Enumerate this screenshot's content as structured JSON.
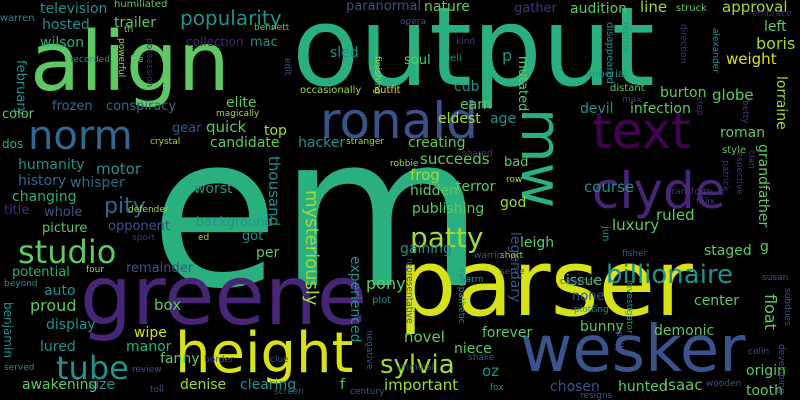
{
  "words": {
    "em": "em",
    "output": "output",
    "parser": "parser",
    "align": "align",
    "greene": "greene",
    "wesker": "wesker",
    "height": "height",
    "ronald": "ronald",
    "text": "text",
    "clyde": "clyde",
    "mw": "mw",
    "norm": "norm",
    "studio": "studio",
    "tube": "tube",
    "patty": "patty",
    "billionaire": "billionaire",
    "sylvia": "sylvia",
    "popularity": "popularity",
    "pity": "pity",
    "mysteriously": "mysteriously",
    "television": "television",
    "nature": "nature",
    "paranormal": "paranormal",
    "approval": "approval",
    "audition": "audition",
    "line": "line",
    "trailer": "trailer",
    "hosted": "hosted",
    "wilson": "wilson",
    "boris": "boris",
    "weight": "weight",
    "collection": "collection",
    "mac": "mac",
    "sled": "sled",
    "soul": "soul",
    "february": "february",
    "color": "color",
    "frozen": "frozen",
    "conspiracy": "conspiracy",
    "elite": "elite",
    "infection": "infection",
    "burton": "burton",
    "globe": "globe",
    "devil": "devil",
    "earn": "earn",
    "eldest": "eldest",
    "age": "age",
    "cub": "cub",
    "mutated": "mutated",
    "gear": "gear",
    "quick": "quick",
    "top": "top",
    "candidate": "candidate",
    "hacker": "hacker",
    "creating": "creating",
    "humanity": "humanity",
    "motor": "motor",
    "history": "history",
    "whisper": "whisper",
    "changing": "changing",
    "title": "title",
    "whole": "whole",
    "picture": "picture",
    "opponent": "opponent",
    "background": "background",
    "got": "got",
    "potential": "potential",
    "remainder": "remainder",
    "per": "per",
    "auto": "auto",
    "proud": "proud",
    "box": "box",
    "pony": "pony",
    "display": "display",
    "wipe": "wipe",
    "manor": "manor",
    "fanny": "fanny",
    "lured": "lured",
    "awakening": "awakening",
    "size": "size",
    "denise": "denise",
    "clearing": "clearing",
    "important": "important",
    "novel": "novel",
    "niece": "niece",
    "forever": "forever",
    "bunny": "bunny",
    "demonic": "demonic",
    "hunted": "hunted",
    "isaac": "isaac",
    "chosen": "chosen",
    "tooth": "tooth",
    "origin": "origin",
    "center": "center",
    "float": "float",
    "roman": "roman",
    "staged": "staged",
    "ruled": "ruled",
    "course": "course",
    "frog": "frog",
    "succeeds": "succeeds",
    "bad": "bad",
    "terror": "terror",
    "hidden": "hidden",
    "publishing": "publishing",
    "god": "god",
    "luxury": "luxury",
    "leigh": "leigh",
    "gaining": "gaining",
    "issue": "issue",
    "none": "none",
    "experienced": "experienced",
    "legendary": "legendary",
    "thousand": "thousand",
    "worst": "worst",
    "grandfather": "grandfather",
    "lorraine": "lorraine",
    "left": "left",
    "gather": "gather",
    "warren": "warren",
    "humiliated": "humiliated",
    "opera": "opera",
    "struck": "struck",
    "embrace": "embrace",
    "bennett": "bennett",
    "th": "th",
    "kind": "kind",
    "eli": "eli",
    "reprise": "reprise",
    "distant": "distant",
    "imperial": "imperial",
    "disappeared": "disappeared",
    "direction": "direction",
    "max": "max",
    "alexander": "alexander",
    "magically": "magically",
    "occasionally": "occasionally",
    "outfit": "outfit",
    "edit": "edit",
    "finishing": "finishing",
    "powerful": "powerful",
    "file": "file",
    "possession": "possession",
    "defender": "defender",
    "crystal": "crystal",
    "dos": "dos",
    "stranger": "stranger",
    "robbie": "robbie",
    "shared": "shared",
    "row": "row",
    "felix": "felix",
    "transform": "transform",
    "style": "style",
    "patrick": "patrick",
    "respective": "respective",
    "clan": "clan",
    "betty": "betty",
    "step": "step",
    "sport": "sport",
    "ed": "ed",
    "four": "four",
    "beyond": "beyond",
    "benjamin": "benjamin",
    "served": "served",
    "review": "review",
    "toll": "toll",
    "screen": "screen",
    "century": "century",
    "fox": "fox",
    "resigns": "resigns",
    "wooden": "wooden",
    "colin": "colin",
    "developing": "developing",
    "subdues": "subdues",
    "susan": "susan",
    "crowned": "crowned",
    "serve": "serve",
    "short": "short",
    "warrior": "warrior",
    "harm": "harm",
    "plot": "plot",
    "sympathetic": "sympathetic",
    "plotting": "plotting",
    "rapidly": "rapidly",
    "investigator": "investigator",
    "fisher": "fisher",
    "jun": "jun",
    "shake": "shake",
    "oz": "oz",
    "criminal": "criminal",
    "negative": "negative",
    "representative": "representative",
    "clue": "clue",
    "border": "border",
    "f": "f",
    "p": "p",
    "g": "g",
    "recorded": "recorded"
  },
  "colors": {
    "yellow": "#d8e219",
    "lime": "#a0da39",
    "green": "#5ec962",
    "teal": "#21918c",
    "seagreen": "#2ab07f",
    "blue": "#31688e",
    "steel": "#3b528b",
    "indigo": "#414487",
    "purple": "#482677",
    "violet": "#440154",
    "dark": "#46327e"
  }
}
